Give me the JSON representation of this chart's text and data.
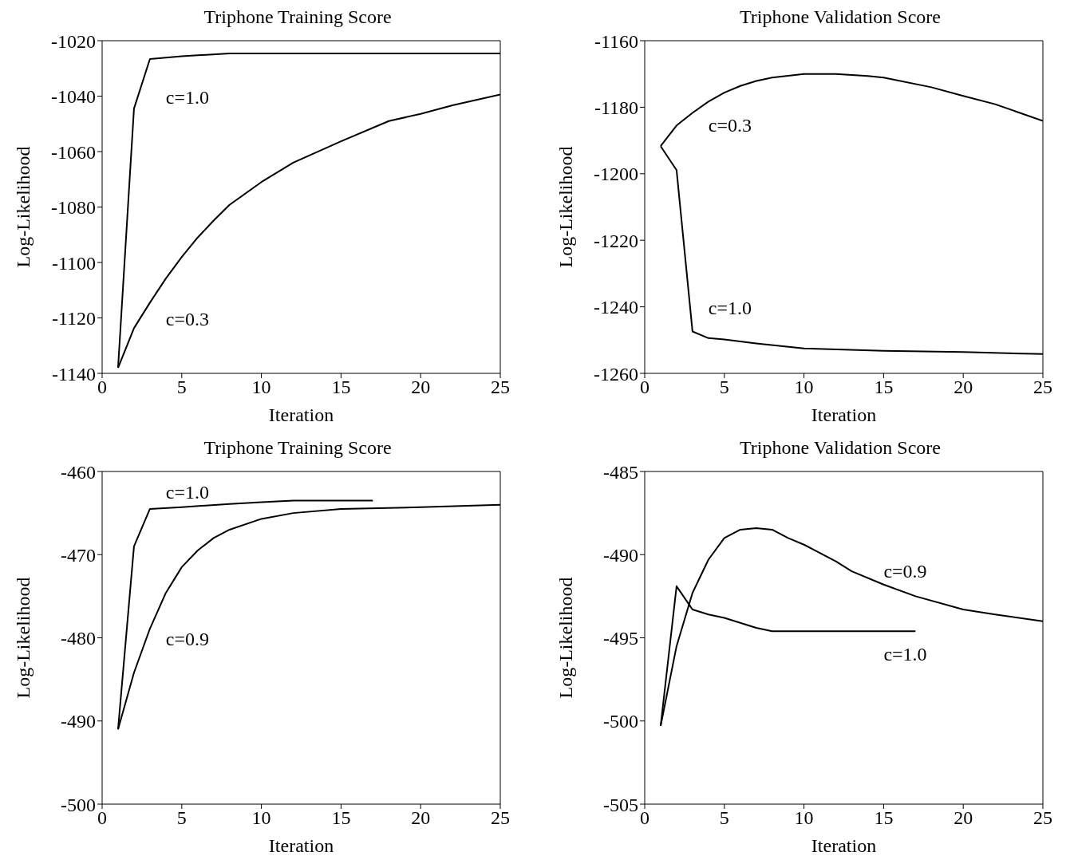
{
  "chart_data": [
    {
      "type": "line",
      "title": "Triphone Training Score",
      "xlabel": "Iteration",
      "ylabel": "Log-Likelihood",
      "xlim": [
        0,
        25
      ],
      "xticks": [
        0,
        5,
        10,
        15,
        20,
        25
      ],
      "ylim": [
        -1140,
        -1020
      ],
      "yticks": [
        -1140,
        -1120,
        -1100,
        -1080,
        -1060,
        -1040,
        -1020
      ],
      "series": [
        {
          "color": "#000000",
          "x": [
            1,
            2,
            3,
            5,
            8,
            25
          ],
          "values": [
            -1138,
            -1044.5,
            -1026.6,
            -1025.6,
            -1024.6,
            -1024.6
          ]
        },
        {
          "color": "#000000",
          "x": [
            1,
            2,
            3,
            4,
            5,
            6,
            7,
            8,
            10,
            12,
            15,
            18,
            20,
            22,
            25
          ],
          "values": [
            -1138,
            -1123.7,
            -1114.5,
            -1105.8,
            -1098,
            -1091,
            -1084.9,
            -1079.2,
            -1071,
            -1064,
            -1056.3,
            -1049,
            -1046.4,
            -1043.3,
            -1039.4
          ]
        }
      ],
      "annotations": [
        "c=1.0",
        "c=0.3"
      ]
    },
    {
      "type": "line",
      "title": "Triphone Validation Score",
      "xlabel": "Iteration",
      "ylabel": "Log-Likelihood",
      "xlim": [
        0,
        25
      ],
      "xticks": [
        0,
        5,
        10,
        15,
        20,
        25
      ],
      "ylim": [
        -1260,
        -1160
      ],
      "yticks": [
        -1260,
        -1240,
        -1220,
        -1200,
        -1180,
        -1160
      ],
      "series": [
        {
          "color": "#000000",
          "x": [
            1,
            2,
            3,
            4,
            5,
            6,
            7,
            8,
            10,
            12,
            14,
            15,
            18,
            20,
            22,
            25
          ],
          "values": [
            -1191.7,
            -1185.5,
            -1181.7,
            -1178.3,
            -1175.6,
            -1173.6,
            -1172.1,
            -1171.1,
            -1170,
            -1170,
            -1170.6,
            -1171.1,
            -1174,
            -1176.6,
            -1179.1,
            -1184.1
          ]
        },
        {
          "color": "#000000",
          "x": [
            1,
            2,
            3,
            4,
            5,
            7,
            10,
            15,
            20,
            25
          ],
          "values": [
            -1191.7,
            -1198.9,
            -1247.4,
            -1249.4,
            -1249.8,
            -1251,
            -1252.5,
            -1253.2,
            -1253.6,
            -1254.2
          ]
        }
      ],
      "annotations": [
        "c=0.3",
        "c=1.0"
      ]
    },
    {
      "type": "line",
      "title": "Triphone Training Score",
      "xlabel": "Iteration",
      "ylabel": "Log-Likelihood",
      "xlim": [
        0,
        25
      ],
      "xticks": [
        0,
        5,
        10,
        15,
        20,
        25
      ],
      "ylim": [
        -500,
        -460
      ],
      "yticks": [
        -500,
        -490,
        -480,
        -470,
        -460
      ],
      "series": [
        {
          "color": "#000000",
          "x": [
            1,
            2,
            3,
            5,
            8,
            10,
            12,
            17
          ],
          "values": [
            -491,
            -469,
            -464.5,
            -464.3,
            -463.9,
            -463.7,
            -463.5,
            -463.5
          ]
        },
        {
          "color": "#000000",
          "x": [
            1,
            2,
            3,
            4,
            5,
            6,
            7,
            8,
            10,
            12,
            15,
            20,
            25
          ],
          "values": [
            -491,
            -484.2,
            -478.9,
            -474.6,
            -471.5,
            -469.5,
            -468,
            -467,
            -465.7,
            -465,
            -464.5,
            -464.3,
            -464
          ]
        }
      ],
      "annotations": [
        "c=1.0",
        "c=0.9"
      ]
    },
    {
      "type": "line",
      "title": "Triphone Validation Score",
      "xlabel": "Iteration",
      "ylabel": "Log-Likelihood",
      "xlim": [
        0,
        25
      ],
      "xticks": [
        0,
        5,
        10,
        15,
        20,
        25
      ],
      "ylim": [
        -505,
        -485
      ],
      "yticks": [
        -505,
        -500,
        -495,
        -490,
        -485
      ],
      "series": [
        {
          "color": "#000000",
          "x": [
            1,
            2,
            3,
            4,
            5,
            6,
            7,
            8,
            9,
            10,
            12,
            13,
            15,
            17,
            20,
            22,
            25
          ],
          "values": [
            -500.3,
            -495.5,
            -492.3,
            -490.3,
            -489,
            -488.5,
            -488.4,
            -488.5,
            -489,
            -489.4,
            -490.4,
            -491,
            -491.8,
            -492.5,
            -493.3,
            -493.6,
            -494
          ]
        },
        {
          "color": "#000000",
          "x": [
            1,
            2,
            3,
            4,
            5,
            6,
            7,
            8,
            10,
            12,
            17
          ],
          "values": [
            -500.3,
            -491.9,
            -493.3,
            -493.6,
            -493.8,
            -494.1,
            -494.4,
            -494.6,
            -494.6,
            -494.6,
            -494.6
          ]
        }
      ],
      "annotations": [
        "c=0.9",
        "c=1.0"
      ]
    }
  ]
}
